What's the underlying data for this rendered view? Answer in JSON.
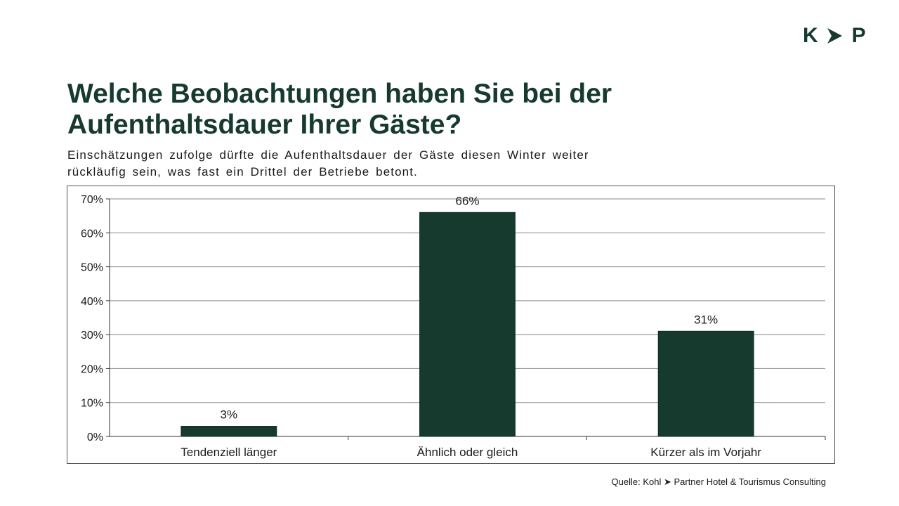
{
  "logo": {
    "left": "K",
    "right": "P",
    "arrow_icon": "chevron-right-icon"
  },
  "title": "Welche Beobachtungen haben Sie bei der Aufenthaltsdauer Ihrer Gäste?",
  "subtitle": "Einschätzungen zufolge dürfte die Aufenthaltsdauer der Gäste diesen Winter weiter rückläufig sein, was fast ein Drittel der Betriebe betont.",
  "source": "Quelle: Kohl ➤ Partner Hotel & Tourismus Consulting",
  "colors": {
    "brand": "#173a2e",
    "bar": "#173a2e",
    "grid": "#888888"
  },
  "chart_data": {
    "type": "bar",
    "categories": [
      "Tendenziell länger",
      "Ähnlich oder gleich",
      "Kürzer als im Vorjahr"
    ],
    "values": [
      3,
      66,
      31
    ],
    "value_labels": [
      "3%",
      "66%",
      "31%"
    ],
    "ylim": [
      0,
      70
    ],
    "y_ticks": [
      0,
      10,
      20,
      30,
      40,
      50,
      60,
      70
    ],
    "y_tick_labels": [
      "0%",
      "10%",
      "20%",
      "30%",
      "40%",
      "50%",
      "60%",
      "70%"
    ],
    "grid": true,
    "xlabel": "",
    "ylabel": ""
  }
}
